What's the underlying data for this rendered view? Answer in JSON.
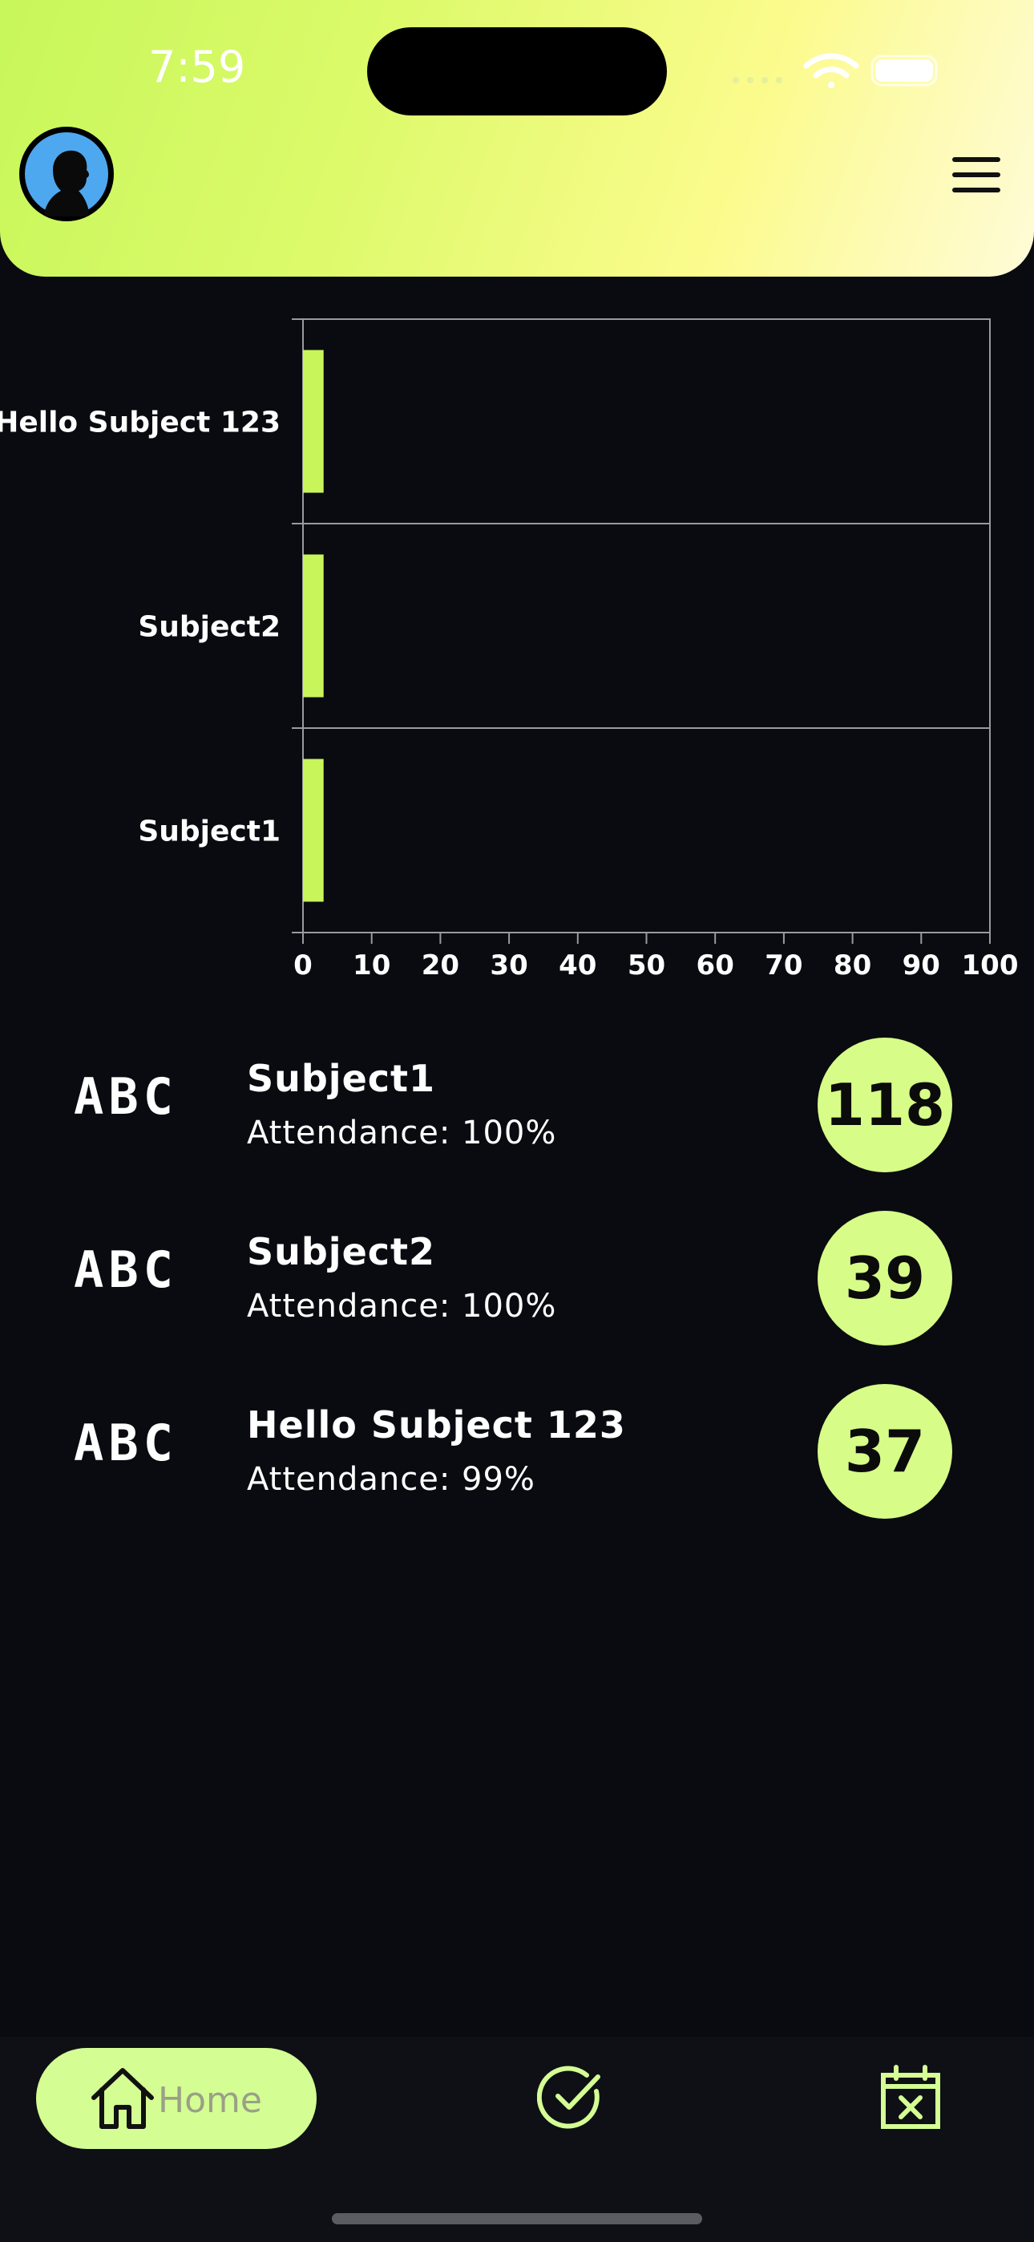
{
  "status_bar": {
    "time": "7:59"
  },
  "header": {
    "avatar_icon": "user-silhouette-icon",
    "menu_icon": "hamburger-menu-icon"
  },
  "colors": {
    "accent": "#c7f75a",
    "bar": "#c8f55a",
    "badge": "#d7fd88",
    "background": "#0a0b10"
  },
  "chart_data": {
    "type": "bar",
    "orientation": "horizontal",
    "categories": [
      "Hello Subject 123",
      "Subject2",
      "Subject1"
    ],
    "values": [
      3,
      3,
      3
    ],
    "xlim": [
      0,
      100
    ],
    "xticks": [
      "0",
      "10",
      "20",
      "30",
      "40",
      "50",
      "60",
      "70",
      "80",
      "90",
      "100"
    ],
    "grid": "horizontal-separators"
  },
  "subjects": [
    {
      "logo": "ABC",
      "name": "Subject1",
      "attendance": "Attendance: 100%",
      "count": "118"
    },
    {
      "logo": "ABC",
      "name": "Subject2",
      "attendance": "Attendance: 100%",
      "count": "39"
    },
    {
      "logo": "ABC",
      "name": "Hello Subject 123",
      "attendance": "Attendance: 99%",
      "count": "37"
    }
  ],
  "tabbar": {
    "home_label": "Home",
    "home_icon": "home-icon",
    "check_icon": "check-circle-icon",
    "calendar_icon": "calendar-x-icon"
  }
}
